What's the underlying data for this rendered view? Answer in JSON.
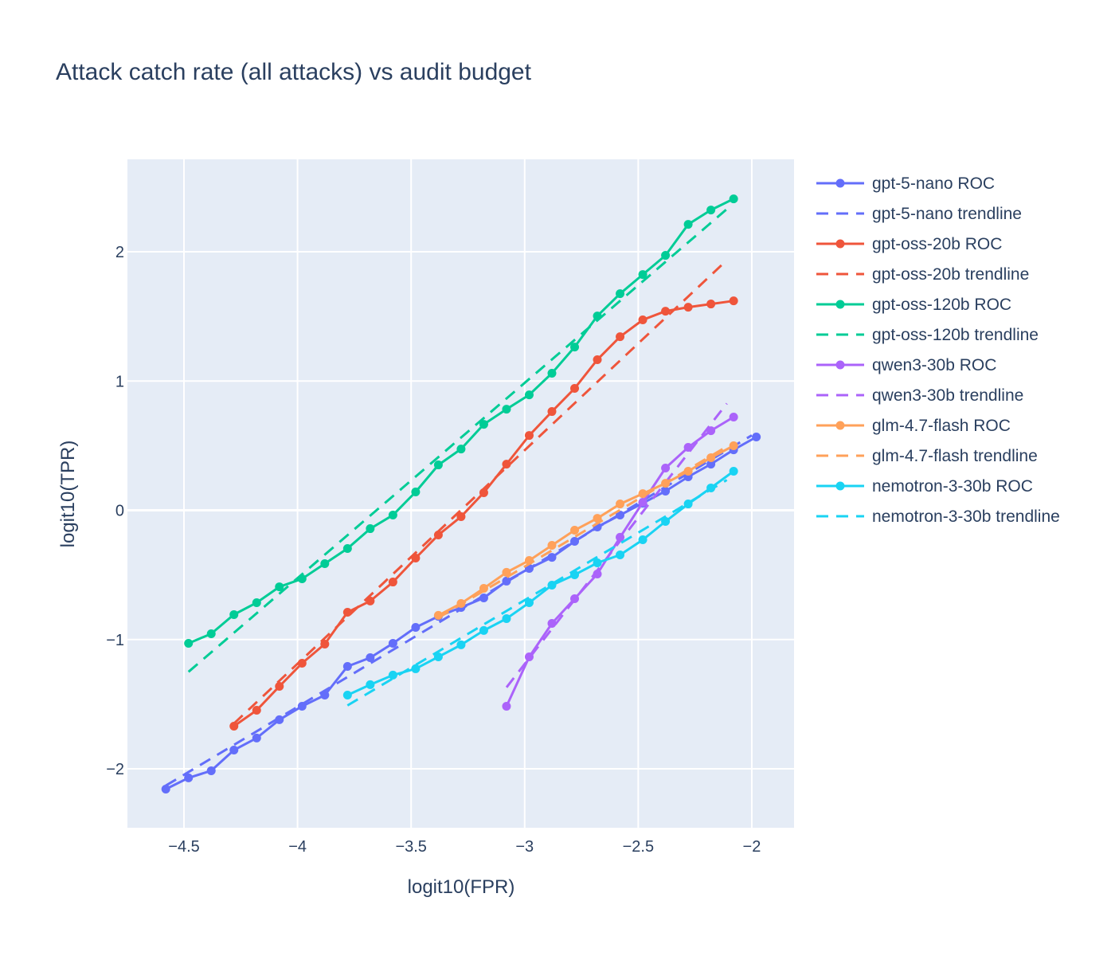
{
  "chart_data": {
    "type": "line",
    "title": "Attack catch rate (all attacks) vs audit budget",
    "xlabel": "logit10(FPR)",
    "ylabel": "logit10(TPR)",
    "xlim": [
      -4.749,
      -1.814
    ],
    "ylim": [
      -2.456,
      2.715
    ],
    "xticks": [
      -4.5,
      -4,
      -3.5,
      -3,
      -2.5,
      -2
    ],
    "xtick_labels": [
      "−4.5",
      "−4",
      "−3.5",
      "−3",
      "−2.5",
      "−2"
    ],
    "yticks": [
      -2,
      -1,
      0,
      1,
      2
    ],
    "ytick_labels": [
      "−2",
      "−1",
      "0",
      "1",
      "2"
    ],
    "grid": true,
    "legend_position": "right",
    "series": [
      {
        "name": "gpt-5-nano ROC",
        "color": "#636efa",
        "style": "solid-markers",
        "x0": -4.58,
        "dx": 0.1,
        "y": [
          -2.157,
          -2.07,
          -2.015,
          -1.855,
          -1.762,
          -1.62,
          -1.516,
          -1.43,
          -1.208,
          -1.14,
          -1.029,
          -0.906,
          -0.82,
          -0.752,
          -0.678,
          -0.548,
          -0.45,
          -0.364,
          -0.24,
          -0.129,
          -0.037,
          0.055,
          0.148,
          0.259,
          0.357,
          0.468,
          0.567
        ]
      },
      {
        "name": "gpt-5-nano trendline",
        "color": "#636efa",
        "style": "dash",
        "x": [
          -4.58,
          -2.0
        ],
        "y": [
          -2.13,
          0.58
        ]
      },
      {
        "name": "gpt-oss-20b ROC",
        "color": "#EF553B",
        "style": "solid-markers",
        "x0": -4.28,
        "dx": 0.1,
        "y": [
          -1.67,
          -1.547,
          -1.362,
          -1.183,
          -1.035,
          -0.789,
          -0.702,
          -0.555,
          -0.37,
          -0.191,
          -0.049,
          0.136,
          0.357,
          0.579,
          0.764,
          0.943,
          1.165,
          1.343,
          1.473,
          1.54,
          1.571,
          1.596,
          1.62
        ]
      },
      {
        "name": "gpt-oss-20b trendline",
        "color": "#EF553B",
        "style": "dash",
        "x": [
          -4.28,
          -2.11
        ],
        "y": [
          -1.65,
          1.935
        ]
      },
      {
        "name": "gpt-oss-120b ROC",
        "color": "#00cc96",
        "style": "solid-markers",
        "x0": -4.48,
        "dx": 0.1,
        "y": [
          -1.029,
          -0.955,
          -0.807,
          -0.715,
          -0.592,
          -0.53,
          -0.413,
          -0.296,
          -0.142,
          -0.037,
          0.142,
          0.351,
          0.474,
          0.665,
          0.782,
          0.893,
          1.06,
          1.263,
          1.503,
          1.676,
          1.824,
          1.972,
          2.212,
          2.323,
          2.409
        ]
      },
      {
        "name": "gpt-oss-120b trendline",
        "color": "#00cc96",
        "style": "dash",
        "x": [
          -4.48,
          -2.11
        ],
        "y": [
          -1.25,
          2.33
        ]
      },
      {
        "name": "qwen3-30b ROC",
        "color": "#ab63fa",
        "style": "solid-markers",
        "x0": -3.08,
        "dx": 0.1,
        "y": [
          -1.516,
          -1.134,
          -0.875,
          -0.684,
          -0.493,
          -0.209,
          0.062,
          0.327,
          0.487,
          0.616,
          0.721
        ]
      },
      {
        "name": "qwen3-30b trendline",
        "color": "#ab63fa",
        "style": "dash",
        "x": [
          -3.08,
          -2.11
        ],
        "y": [
          -1.37,
          0.826
        ]
      },
      {
        "name": "glm-4.7-flash ROC",
        "color": "#FFA15A",
        "style": "solid-markers",
        "x0": -3.38,
        "dx": 0.1,
        "y": [
          -0.813,
          -0.721,
          -0.604,
          -0.48,
          -0.388,
          -0.271,
          -0.154,
          -0.062,
          0.049,
          0.129,
          0.209,
          0.302,
          0.407,
          0.499
        ]
      },
      {
        "name": "glm-4.7-flash trendline",
        "color": "#FFA15A",
        "style": "dash",
        "x": [
          -3.38,
          -2.11
        ],
        "y": [
          -0.832,
          0.493
        ]
      },
      {
        "name": "nemotron-3-30b ROC",
        "color": "#19d3f3",
        "style": "solid-markers",
        "x0": -3.78,
        "dx": 0.1,
        "y": [
          -1.43,
          -1.349,
          -1.275,
          -1.226,
          -1.134,
          -1.041,
          -0.93,
          -0.838,
          -0.715,
          -0.579,
          -0.499,
          -0.407,
          -0.345,
          -0.228,
          -0.086,
          0.049,
          0.173,
          0.302
        ]
      },
      {
        "name": "nemotron-3-30b trendline",
        "color": "#19d3f3",
        "style": "dash",
        "x": [
          -3.78,
          -2.11
        ],
        "y": [
          -1.51,
          0.234
        ]
      }
    ]
  }
}
